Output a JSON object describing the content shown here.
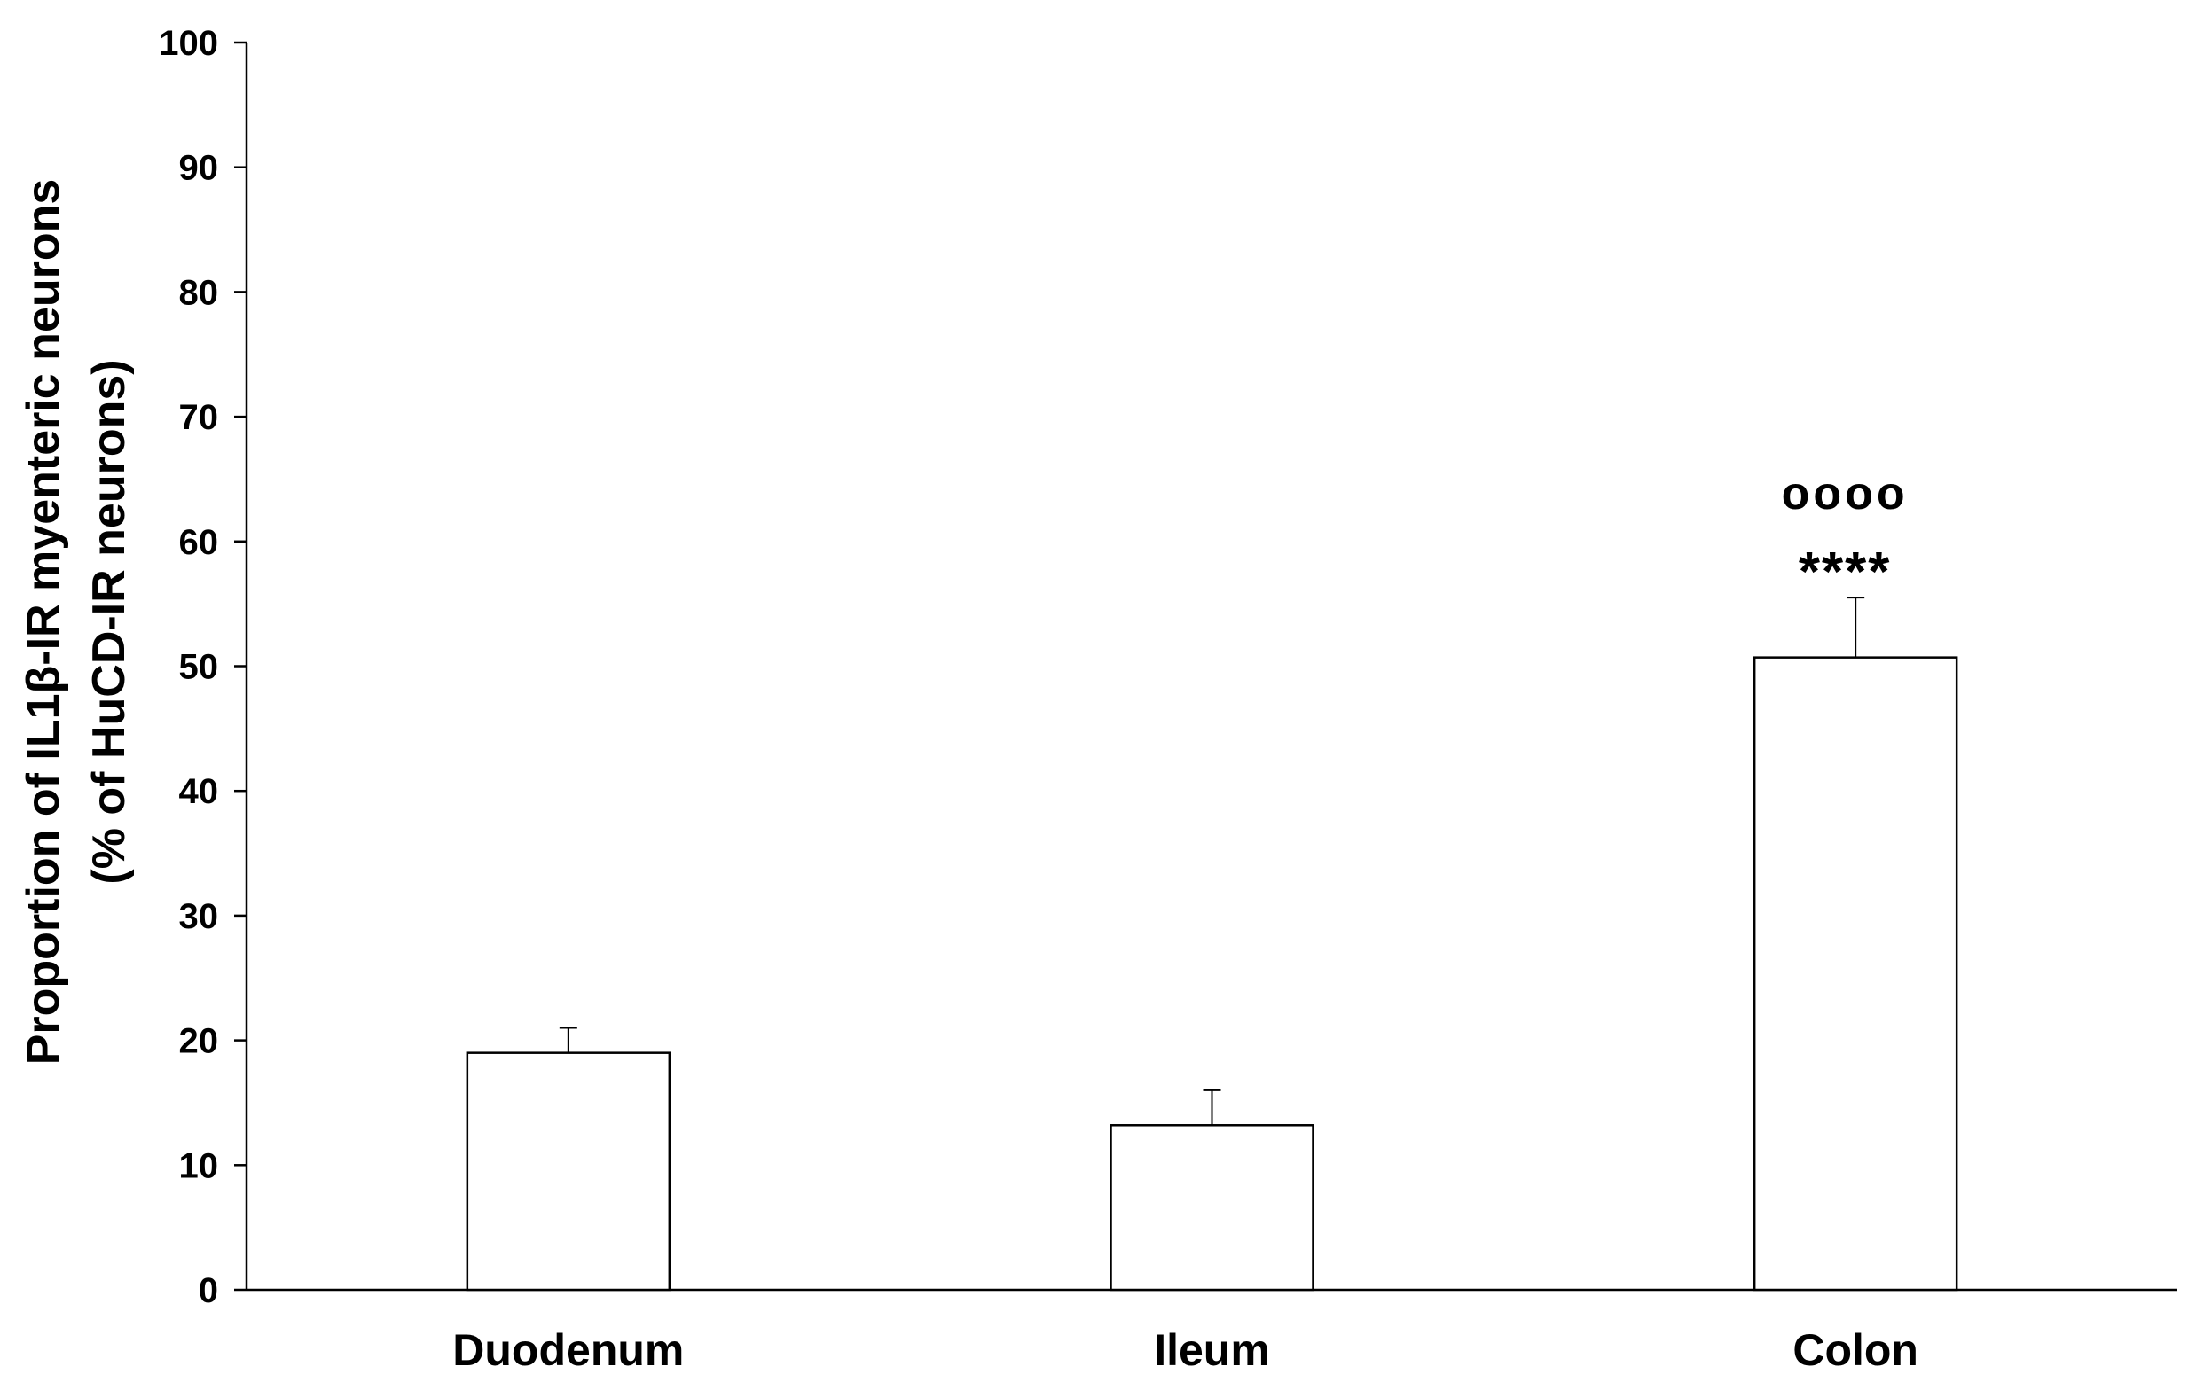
{
  "chart_data": {
    "type": "bar",
    "title": "",
    "xlabel": "",
    "ylabel_lines": [
      "Proportion of IL1β-IR myenteric neurons",
      "(% of HuCD-IR neurons)"
    ],
    "categories": [
      "Duodenum",
      "Ileum",
      "Colon"
    ],
    "values": [
      19.0,
      13.2,
      50.7
    ],
    "error_upper": [
      21.0,
      16.0,
      55.5
    ],
    "ylim": [
      0,
      100
    ],
    "yticks": [
      0,
      10,
      20,
      30,
      40,
      50,
      60,
      70,
      80,
      90,
      100
    ],
    "grid": false,
    "legend": "none",
    "annotations": [
      {
        "category": "Colon",
        "lines": [
          "oooo",
          "****"
        ]
      }
    ],
    "colors": {
      "bar_fill": "#ffffff",
      "bar_stroke": "#000000",
      "axis": "#000000"
    }
  }
}
